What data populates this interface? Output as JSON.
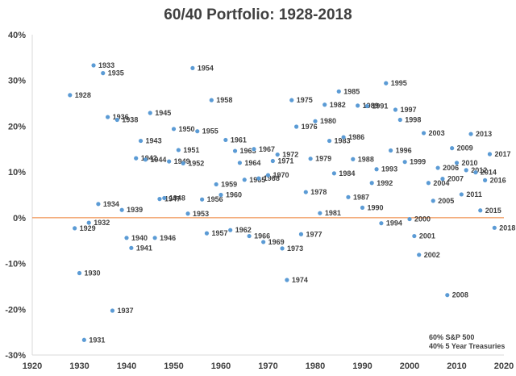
{
  "chart_data": {
    "type": "scatter",
    "title": "60/40 Portfolio: 1928-2018",
    "xlabel": "",
    "ylabel": "",
    "xlim": [
      1920,
      2020
    ],
    "ylim": [
      -30,
      40
    ],
    "x_ticks": [
      1920,
      1930,
      1940,
      1950,
      1960,
      1970,
      1980,
      1990,
      2000,
      2010,
      2020
    ],
    "y_ticks": [
      -30,
      -20,
      -10,
      0,
      10,
      20,
      30,
      40
    ],
    "y_tick_format": "percent",
    "grid": false,
    "zero_line_color": "#ED7D31",
    "point_color": "#5B9BD5",
    "annotation_lines": [
      "60% S&P 500",
      "40% 5 Year Treasuries"
    ],
    "points": [
      {
        "x": 1928,
        "y": 26.8,
        "label": "1928"
      },
      {
        "x": 1929,
        "y": -2.3,
        "label": "1929"
      },
      {
        "x": 1930,
        "y": -12.1,
        "label": "1930"
      },
      {
        "x": 1931,
        "y": -26.7,
        "label": "1931"
      },
      {
        "x": 1932,
        "y": -1.1,
        "label": "1932"
      },
      {
        "x": 1933,
        "y": 33.3,
        "label": "1933"
      },
      {
        "x": 1934,
        "y": 3.0,
        "label": "1934"
      },
      {
        "x": 1935,
        "y": 31.6,
        "label": "1935"
      },
      {
        "x": 1936,
        "y": 22.0,
        "label": "1936"
      },
      {
        "x": 1937,
        "y": -20.3,
        "label": "1937"
      },
      {
        "x": 1938,
        "y": 21.4,
        "label": "1938"
      },
      {
        "x": 1939,
        "y": 1.7,
        "label": "1939"
      },
      {
        "x": 1940,
        "y": -4.4,
        "label": "1940"
      },
      {
        "x": 1941,
        "y": -6.6,
        "label": "1941"
      },
      {
        "x": 1942,
        "y": 13.0,
        "label": "1942"
      },
      {
        "x": 1943,
        "y": 16.8,
        "label": "1943"
      },
      {
        "x": 1944,
        "y": 12.7,
        "label": "1944"
      },
      {
        "x": 1945,
        "y": 22.9,
        "label": "1945"
      },
      {
        "x": 1946,
        "y": -4.4,
        "label": "1946"
      },
      {
        "x": 1947,
        "y": 4.1,
        "label": "1947"
      },
      {
        "x": 1948,
        "y": 4.3,
        "label": "1948"
      },
      {
        "x": 1949,
        "y": 12.3,
        "label": "1949"
      },
      {
        "x": 1950,
        "y": 19.4,
        "label": "1950"
      },
      {
        "x": 1951,
        "y": 14.8,
        "label": "1951"
      },
      {
        "x": 1952,
        "y": 11.9,
        "label": "1952"
      },
      {
        "x": 1953,
        "y": 0.9,
        "label": "1953"
      },
      {
        "x": 1954,
        "y": 32.7,
        "label": "1954"
      },
      {
        "x": 1955,
        "y": 18.9,
        "label": "1955"
      },
      {
        "x": 1956,
        "y": 4.0,
        "label": "1956"
      },
      {
        "x": 1957,
        "y": -3.4,
        "label": "1957"
      },
      {
        "x": 1958,
        "y": 25.7,
        "label": "1958"
      },
      {
        "x": 1959,
        "y": 7.3,
        "label": "1959"
      },
      {
        "x": 1960,
        "y": 5.0,
        "label": "1960"
      },
      {
        "x": 1961,
        "y": 17.0,
        "label": "1961"
      },
      {
        "x": 1962,
        "y": -2.7,
        "label": "1962"
      },
      {
        "x": 1963,
        "y": 14.6,
        "label": "1963"
      },
      {
        "x": 1964,
        "y": 12.0,
        "label": "1964"
      },
      {
        "x": 1965,
        "y": 8.3,
        "label": "1965"
      },
      {
        "x": 1966,
        "y": -4.0,
        "label": "1966"
      },
      {
        "x": 1967,
        "y": 15.0,
        "label": "1967"
      },
      {
        "x": 1968,
        "y": 8.6,
        "label": "1968"
      },
      {
        "x": 1969,
        "y": -5.3,
        "label": "1969"
      },
      {
        "x": 1970,
        "y": 9.3,
        "label": "1970"
      },
      {
        "x": 1971,
        "y": 12.4,
        "label": "1971"
      },
      {
        "x": 1972,
        "y": 13.8,
        "label": "1972"
      },
      {
        "x": 1973,
        "y": -6.7,
        "label": "1973"
      },
      {
        "x": 1974,
        "y": -13.6,
        "label": "1974"
      },
      {
        "x": 1975,
        "y": 25.7,
        "label": "1975"
      },
      {
        "x": 1976,
        "y": 19.9,
        "label": "1976"
      },
      {
        "x": 1977,
        "y": -3.6,
        "label": "1977"
      },
      {
        "x": 1978,
        "y": 5.6,
        "label": "1978"
      },
      {
        "x": 1979,
        "y": 12.9,
        "label": "1979"
      },
      {
        "x": 1980,
        "y": 21.1,
        "label": "1980"
      },
      {
        "x": 1981,
        "y": 1.0,
        "label": "1981"
      },
      {
        "x": 1982,
        "y": 24.7,
        "label": "1982"
      },
      {
        "x": 1983,
        "y": 16.8,
        "label": "1983"
      },
      {
        "x": 1984,
        "y": 9.7,
        "label": "1984"
      },
      {
        "x": 1985,
        "y": 27.6,
        "label": "1985"
      },
      {
        "x": 1986,
        "y": 17.6,
        "label": "1986"
      },
      {
        "x": 1987,
        "y": 4.5,
        "label": "1987"
      },
      {
        "x": 1988,
        "y": 12.8,
        "label": "1988"
      },
      {
        "x": 1989,
        "y": 24.5,
        "label": "1989"
      },
      {
        "x": 1990,
        "y": 2.2,
        "label": "1990"
      },
      {
        "x": 1991,
        "y": 24.4,
        "label": "1991"
      },
      {
        "x": 1992,
        "y": 7.6,
        "label": "1992"
      },
      {
        "x": 1993,
        "y": 10.6,
        "label": "1993"
      },
      {
        "x": 1994,
        "y": -1.2,
        "label": "1994"
      },
      {
        "x": 1995,
        "y": 29.4,
        "label": "1995"
      },
      {
        "x": 1996,
        "y": 14.7,
        "label": "1996"
      },
      {
        "x": 1997,
        "y": 23.6,
        "label": "1997"
      },
      {
        "x": 1998,
        "y": 21.4,
        "label": "1998"
      },
      {
        "x": 1999,
        "y": 12.2,
        "label": "1999"
      },
      {
        "x": 2000,
        "y": -0.3,
        "label": "2000"
      },
      {
        "x": 2001,
        "y": -4.0,
        "label": "2001"
      },
      {
        "x": 2002,
        "y": -8.1,
        "label": "2002"
      },
      {
        "x": 2003,
        "y": 18.5,
        "label": "2003"
      },
      {
        "x": 2004,
        "y": 7.6,
        "label": "2004"
      },
      {
        "x": 2005,
        "y": 3.7,
        "label": "2005"
      },
      {
        "x": 2006,
        "y": 10.9,
        "label": "2006"
      },
      {
        "x": 2007,
        "y": 8.5,
        "label": "2007"
      },
      {
        "x": 2008,
        "y": -16.9,
        "label": "2008"
      },
      {
        "x": 2009,
        "y": 15.2,
        "label": "2009"
      },
      {
        "x": 2010,
        "y": 12.0,
        "label": "2010"
      },
      {
        "x": 2011,
        "y": 5.1,
        "label": "2011"
      },
      {
        "x": 2012,
        "y": 10.4,
        "label": "2012"
      },
      {
        "x": 2013,
        "y": 18.3,
        "label": "2013"
      },
      {
        "x": 2014,
        "y": 9.9,
        "label": "2014"
      },
      {
        "x": 2015,
        "y": 1.6,
        "label": "2015"
      },
      {
        "x": 2016,
        "y": 8.2,
        "label": "2016"
      },
      {
        "x": 2017,
        "y": 13.9,
        "label": "2017"
      },
      {
        "x": 2018,
        "y": -2.2,
        "label": "2018"
      }
    ]
  }
}
